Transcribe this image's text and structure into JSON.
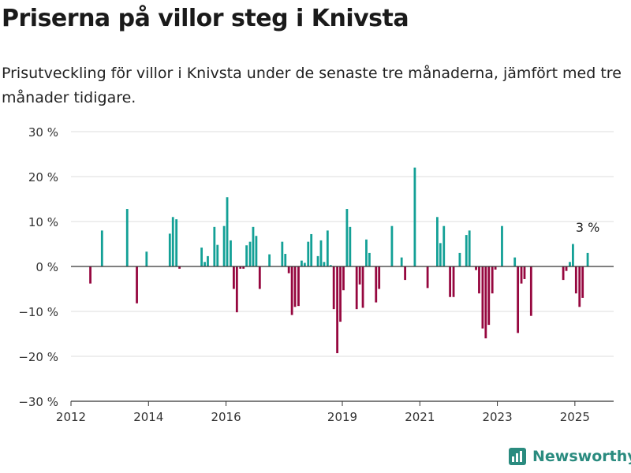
{
  "header": {
    "title": "Priserna på villor steg i Knivsta",
    "subtitle": "Prisutveckling för villor i Knivsta under de senaste tre månaderna, jämfört med tre månader tidigare."
  },
  "brand": {
    "name": "Newsworthy",
    "icon": "newsworthy-logo-icon",
    "color": "#2a8b7f"
  },
  "chart_data": {
    "type": "bar",
    "title": "Priserna på villor steg i Knivsta",
    "xlim": [
      2012.0,
      2026.0
    ],
    "ylim": [
      -30,
      30
    ],
    "y_ticks": [
      30,
      20,
      10,
      0,
      -10,
      -20,
      -30
    ],
    "y_tick_labels": [
      "30 %",
      "20 %",
      "10 %",
      "0 %",
      "−10 %",
      "−20 %",
      "−30 %"
    ],
    "x_ticks": [
      2012,
      2014,
      2016,
      2019,
      2021,
      2023,
      2025
    ],
    "x_tick_labels": [
      "2012",
      "2014",
      "2016",
      "2019",
      "2021",
      "2023",
      "2025"
    ],
    "grid": true,
    "colors": {
      "positive": "#13a096",
      "negative": "#96073f"
    },
    "annotation": {
      "text": "3 %",
      "x": 2025.33,
      "y": 3
    },
    "points": [
      [
        2012.5,
        -3.8
      ],
      [
        2012.8,
        8.0
      ],
      [
        2013.45,
        12.8
      ],
      [
        2013.7,
        -8.2
      ],
      [
        2013.95,
        3.3
      ],
      [
        2014.55,
        7.3
      ],
      [
        2014.63,
        11.0
      ],
      [
        2014.72,
        10.5
      ],
      [
        2014.8,
        -0.5
      ],
      [
        2015.37,
        4.2
      ],
      [
        2015.45,
        1.0
      ],
      [
        2015.53,
        2.3
      ],
      [
        2015.7,
        8.8
      ],
      [
        2015.78,
        4.8
      ],
      [
        2015.95,
        9.0
      ],
      [
        2016.03,
        15.4
      ],
      [
        2016.12,
        5.8
      ],
      [
        2016.2,
        -5.0
      ],
      [
        2016.28,
        -10.2
      ],
      [
        2016.37,
        -0.5
      ],
      [
        2016.45,
        -0.5
      ],
      [
        2016.53,
        4.7
      ],
      [
        2016.62,
        5.5
      ],
      [
        2016.7,
        8.8
      ],
      [
        2016.78,
        6.8
      ],
      [
        2016.87,
        -5.0
      ],
      [
        2017.12,
        2.7
      ],
      [
        2017.45,
        5.5
      ],
      [
        2017.53,
        2.8
      ],
      [
        2017.62,
        -1.5
      ],
      [
        2017.7,
        -10.8
      ],
      [
        2017.78,
        -9.0
      ],
      [
        2017.87,
        -8.8
      ],
      [
        2017.95,
        1.3
      ],
      [
        2018.03,
        0.8
      ],
      [
        2018.12,
        5.5
      ],
      [
        2018.2,
        7.2
      ],
      [
        2018.37,
        2.3
      ],
      [
        2018.45,
        5.8
      ],
      [
        2018.53,
        1.0
      ],
      [
        2018.62,
        8.0
      ],
      [
        2018.7,
        0.3
      ],
      [
        2018.78,
        -9.5
      ],
      [
        2018.87,
        -19.3
      ],
      [
        2018.95,
        -12.3
      ],
      [
        2019.03,
        -5.3
      ],
      [
        2019.12,
        12.8
      ],
      [
        2019.2,
        8.8
      ],
      [
        2019.37,
        -9.5
      ],
      [
        2019.45,
        -4.0
      ],
      [
        2019.53,
        -9.2
      ],
      [
        2019.62,
        6.0
      ],
      [
        2019.7,
        3.0
      ],
      [
        2019.87,
        -8.0
      ],
      [
        2019.95,
        -5.0
      ],
      [
        2020.28,
        9.0
      ],
      [
        2020.53,
        2.0
      ],
      [
        2020.62,
        -3.0
      ],
      [
        2020.87,
        22.0
      ],
      [
        2021.2,
        -4.8
      ],
      [
        2021.45,
        11.0
      ],
      [
        2021.53,
        5.2
      ],
      [
        2021.62,
        9.0
      ],
      [
        2021.78,
        -6.8
      ],
      [
        2021.87,
        -6.8
      ],
      [
        2022.03,
        3.0
      ],
      [
        2022.2,
        7.0
      ],
      [
        2022.28,
        8.0
      ],
      [
        2022.45,
        -0.8
      ],
      [
        2022.53,
        -6.0
      ],
      [
        2022.62,
        -13.8
      ],
      [
        2022.7,
        -16.0
      ],
      [
        2022.78,
        -13.0
      ],
      [
        2022.87,
        -6.0
      ],
      [
        2022.95,
        -0.7
      ],
      [
        2023.12,
        9.0
      ],
      [
        2023.45,
        2.0
      ],
      [
        2023.53,
        -14.8
      ],
      [
        2023.62,
        -3.8
      ],
      [
        2023.7,
        -2.8
      ],
      [
        2023.87,
        -11.0
      ],
      [
        2024.7,
        -3.0
      ],
      [
        2024.78,
        -1.0
      ],
      [
        2024.87,
        1.0
      ],
      [
        2024.95,
        5.0
      ],
      [
        2025.03,
        -6.0
      ],
      [
        2025.12,
        -9.0
      ],
      [
        2025.2,
        -7.0
      ],
      [
        2025.33,
        3.0
      ]
    ]
  }
}
